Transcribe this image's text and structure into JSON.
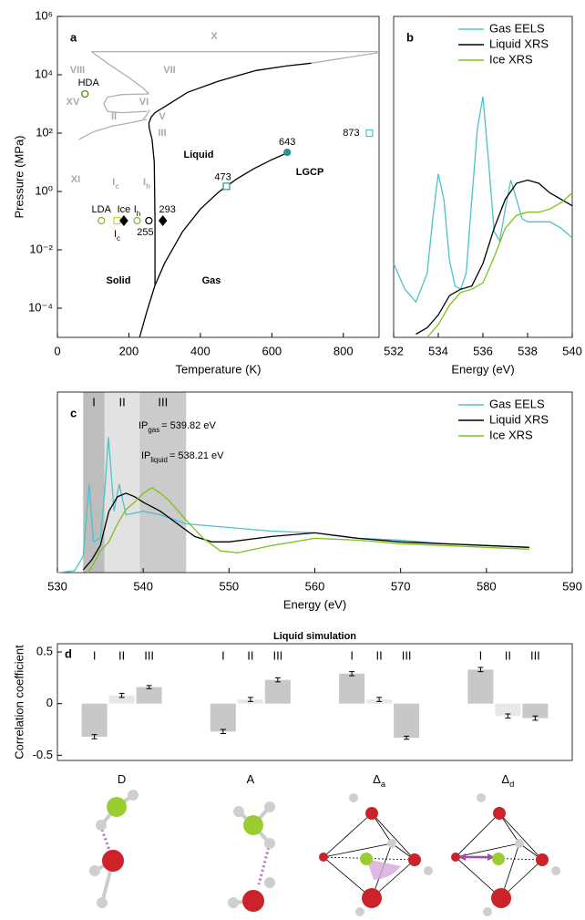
{
  "chart_data": [
    {
      "type": "line",
      "panel": "a",
      "xlabel": "Temperature (K)",
      "ylabel": "Pressure (MPa)",
      "xlim": [
        0,
        900
      ],
      "xticks": [
        0,
        200,
        400,
        600,
        800
      ],
      "ylim": [
        1e-05,
        1000000
      ],
      "log_y": true,
      "yticks": [
        {
          "value": 0.0001,
          "label": "10⁻⁴"
        },
        {
          "value": 0.01,
          "label": "10⁻²"
        },
        {
          "value": 1,
          "label": "10⁰"
        },
        {
          "value": 100,
          "label": "10²"
        },
        {
          "value": 10000,
          "label": "10⁴"
        },
        {
          "value": 1000000,
          "label": "10⁶"
        }
      ],
      "series": [
        {
          "color": "#000000",
          "x": [
            230,
            250,
            273,
            300,
            350,
            400,
            450,
            500,
            550,
            600,
            643
          ],
          "values": [
            1e-05,
            7.6e-05,
            0.00061,
            0.0035,
            0.042,
            0.25,
            0.93,
            2.6,
            6.1,
            12.3,
            21
          ]
        },
        {
          "color": "#000000",
          "x": [
            273,
            273,
            271,
            265,
            257,
            256,
            262,
            273,
            300,
            364,
            450,
            556,
            640,
            710
          ],
          "values": [
            0.00061,
            0.1,
            10,
            60,
            150,
            220,
            350,
            500,
            800,
            2500,
            6000,
            14000,
            20000,
            25000
          ]
        },
        {
          "color": "#b0b0b0",
          "x": [
            710,
            900
          ],
          "values": [
            25000,
            58000
          ]
        },
        {
          "color": "#b0b0b0",
          "x": [
            95,
            900
          ],
          "values": [
            62000,
            62000
          ]
        },
        {
          "color": "#b0b0b0",
          "x": [
            95,
            140,
            200,
            240,
            256
          ],
          "values": [
            62000,
            25000,
            8000,
            3500,
            2200
          ]
        },
        {
          "color": "#b0b0b0",
          "x": [
            256,
            180,
            140,
            130,
            140,
            180,
            250
          ],
          "values": [
            2200,
            2100,
            1700,
            1000,
            550,
            500,
            560
          ]
        },
        {
          "color": "#b0b0b0",
          "x": [
            60,
            100,
            150,
            200,
            240,
            250
          ],
          "values": [
            60,
            110,
            170,
            220,
            280,
            300
          ]
        },
        {
          "color": "#b0b0b0",
          "x": [
            240,
            250,
            257
          ],
          "values": [
            300,
            420,
            620
          ]
        }
      ],
      "points": [
        {
          "x": 77,
          "y": 2200,
          "marker": "circle",
          "color": "#4a7d1a",
          "label": "HDA"
        },
        {
          "x": 123,
          "y": 0.1,
          "marker": "circle",
          "color": "#7ab82e",
          "label": "LDA"
        },
        {
          "x": 167,
          "y": 0.1,
          "marker": "square",
          "color": "#c2d83a",
          "label": {
            "text": "I",
            "sub": "c"
          }
        },
        {
          "x": 186,
          "y": 0.1,
          "marker": "diamond",
          "filled": true,
          "color": "#000000",
          "label": "Ice"
        },
        {
          "x": 223,
          "y": 0.1,
          "marker": "circle",
          "color": "#7ab82e",
          "label": {
            "text": "I",
            "sub": "h"
          }
        },
        {
          "x": 256,
          "y": 0.1,
          "marker": "circle",
          "color": "#000000",
          "label": 255
        },
        {
          "x": 295,
          "y": 0.1,
          "marker": "diamond",
          "filled": true,
          "color": "#000000",
          "label": 293
        },
        {
          "x": 473,
          "y": 1.5,
          "marker": "square",
          "color": "#2c8f96",
          "label": 473
        },
        {
          "x": 643,
          "y": 22,
          "marker": "circle",
          "filled": true,
          "color": "#2c8f96",
          "label": 643
        },
        {
          "x": 873,
          "y": 100,
          "marker": "square",
          "color": "#4cc3c8",
          "label": 873
        }
      ],
      "annotations": [
        {
          "text": "X",
          "color": "#aaaaaa"
        },
        {
          "text": "VIII",
          "color": "#aaaaaa"
        },
        {
          "text": "VII",
          "color": "#aaaaaa"
        },
        {
          "text": "XV",
          "color": "#aaaaaa"
        },
        {
          "text": "VI",
          "color": "#aaaaaa"
        },
        {
          "text": "II",
          "color": "#aaaaaa"
        },
        {
          "text": "V",
          "color": "#aaaaaa"
        },
        {
          "text": "III",
          "color": "#aaaaaa"
        },
        {
          "text": "XI",
          "color": "#aaaaaa"
        },
        {
          "text": "I",
          "sub": "c",
          "color": "#aaaaaa"
        },
        {
          "text": "I",
          "sub": "h",
          "color": "#aaaaaa"
        },
        {
          "text": "Liquid",
          "color": "#000000"
        },
        {
          "text": "LGCP",
          "color": "#000000"
        },
        {
          "text": "Solid",
          "color": "#000000"
        },
        {
          "text": "Gas",
          "color": "#000000"
        }
      ]
    },
    {
      "type": "line",
      "panel": "b",
      "xlabel": "Energy (eV)",
      "xlim": [
        532,
        540
      ],
      "xticks": [
        532,
        534,
        536,
        538,
        540
      ],
      "ylim": [
        0,
        1
      ],
      "legend": "upper right",
      "series": [
        {
          "name": "Gas EELS",
          "color": "#4cc3c8",
          "x": [
            532,
            532.5,
            533,
            533.5,
            533.75,
            534,
            534.25,
            534.5,
            534.75,
            535,
            535.25,
            535.5,
            535.75,
            536,
            536.25,
            536.5,
            536.75,
            537,
            537.25,
            537.5,
            537.75,
            538,
            538.5,
            539,
            539.5,
            540
          ],
          "values": [
            0.23,
            0.15,
            0.11,
            0.2,
            0.37,
            0.51,
            0.43,
            0.24,
            0.16,
            0.15,
            0.2,
            0.43,
            0.65,
            0.75,
            0.55,
            0.33,
            0.3,
            0.4,
            0.49,
            0.43,
            0.37,
            0.36,
            0.36,
            0.36,
            0.34,
            0.31
          ]
        },
        {
          "name": "Liquid XRS",
          "color": "#000000",
          "x": [
            533,
            533.5,
            534,
            534.5,
            535,
            535.5,
            536,
            536.5,
            537,
            537.5,
            538,
            538.5,
            539,
            539.5,
            540
          ],
          "values": [
            0.01,
            0.03,
            0.07,
            0.13,
            0.15,
            0.16,
            0.23,
            0.34,
            0.43,
            0.48,
            0.49,
            0.48,
            0.45,
            0.43,
            0.41
          ]
        },
        {
          "name": "Ice XRS",
          "color": "#7cc21a",
          "x": [
            533.5,
            534,
            534.5,
            535,
            535.5,
            536,
            536.5,
            537,
            537.5,
            538,
            538.5,
            539,
            539.5,
            540
          ],
          "values": [
            0,
            0.04,
            0.1,
            0.14,
            0.15,
            0.17,
            0.25,
            0.34,
            0.38,
            0.39,
            0.39,
            0.4,
            0.42,
            0.45
          ]
        }
      ]
    },
    {
      "type": "line",
      "panel": "c",
      "xlabel": "Energy (eV)",
      "xlim": [
        530,
        590
      ],
      "xticks": [
        530,
        540,
        550,
        560,
        570,
        580,
        590
      ],
      "ylim": [
        0,
        1
      ],
      "legend": "upper right",
      "regions": [
        {
          "label": "I",
          "start": 533,
          "end": 535.5,
          "color": "#bdbdbd"
        },
        {
          "label": "II",
          "start": 535.5,
          "end": 539.6,
          "color": "#e2e2e2"
        },
        {
          "label": "III",
          "start": 539.6,
          "end": 545,
          "color": "#cbcbcb"
        }
      ],
      "annotations": [
        {
          "text": "IP",
          "sub": "gas",
          "after": "= 539.82 eV"
        },
        {
          "text": "IP",
          "sub": "liquid",
          "after": "= 538.21 eV"
        }
      ],
      "series": [
        {
          "name": "Gas EELS",
          "color": "#4cc3c8",
          "x": [
            530,
            532,
            533,
            533.7,
            534.2,
            535,
            535.5,
            535.95,
            536.6,
            537.2,
            538,
            539,
            540,
            542,
            545,
            550,
            555,
            560,
            565,
            570,
            575,
            580,
            585
          ],
          "values": [
            0,
            0.01,
            0.09,
            0.49,
            0.17,
            0.19,
            0.44,
            0.75,
            0.34,
            0.49,
            0.32,
            0.33,
            0.34,
            0.32,
            0.27,
            0.25,
            0.23,
            0.22,
            0.19,
            0.18,
            0.16,
            0.15,
            0.14
          ]
        },
        {
          "name": "Liquid XRS",
          "color": "#000000",
          "x": [
            533,
            534,
            535,
            536,
            537,
            538,
            539,
            540,
            542,
            544,
            546,
            548,
            550,
            555,
            560,
            565,
            570,
            575,
            580,
            585
          ],
          "values": [
            0.015,
            0.07,
            0.15,
            0.34,
            0.42,
            0.44,
            0.42,
            0.39,
            0.34,
            0.27,
            0.2,
            0.17,
            0.17,
            0.2,
            0.22,
            0.19,
            0.17,
            0.16,
            0.15,
            0.14
          ]
        },
        {
          "name": "Ice XRS",
          "color": "#7cc21a",
          "x": [
            533.5,
            534,
            535,
            536,
            537,
            538,
            539,
            540,
            541,
            542,
            543,
            545,
            547,
            549,
            551,
            555,
            560,
            565,
            570,
            575,
            580,
            585
          ],
          "values": [
            0,
            0.03,
            0.12,
            0.17,
            0.27,
            0.35,
            0.39,
            0.44,
            0.47,
            0.44,
            0.4,
            0.29,
            0.19,
            0.12,
            0.11,
            0.15,
            0.19,
            0.18,
            0.16,
            0.15,
            0.14,
            0.13
          ]
        }
      ]
    },
    {
      "type": "bar",
      "panel": "d",
      "title": "Liquid simulation",
      "ylabel": "Correlation coefficient",
      "ylim": [
        -0.55,
        0.58
      ],
      "yticks": [
        -0.5,
        0,
        0.5
      ],
      "categories": [
        {
          "text": "D"
        },
        {
          "text": "A"
        },
        {
          "text": "Δ",
          "sub": "a"
        },
        {
          "text": "Δ",
          "sub": "d"
        }
      ],
      "series": [
        {
          "name": "I",
          "color": "#c8c8c8",
          "values": [
            -0.32,
            -0.27,
            0.29,
            0.33
          ],
          "errors": [
            0.02,
            0.02,
            0.02,
            0.02
          ]
        },
        {
          "name": "II",
          "color": "#e8e8e8",
          "values": [
            0.08,
            0.04,
            0.04,
            -0.12
          ],
          "errors": [
            0.02,
            0.02,
            0.02,
            0.02
          ]
        },
        {
          "name": "III",
          "color": "#c8c8c8",
          "values": [
            0.16,
            0.23,
            -0.33,
            -0.14
          ],
          "errors": [
            0.015,
            0.02,
            0.015,
            0.02
          ]
        }
      ]
    }
  ]
}
